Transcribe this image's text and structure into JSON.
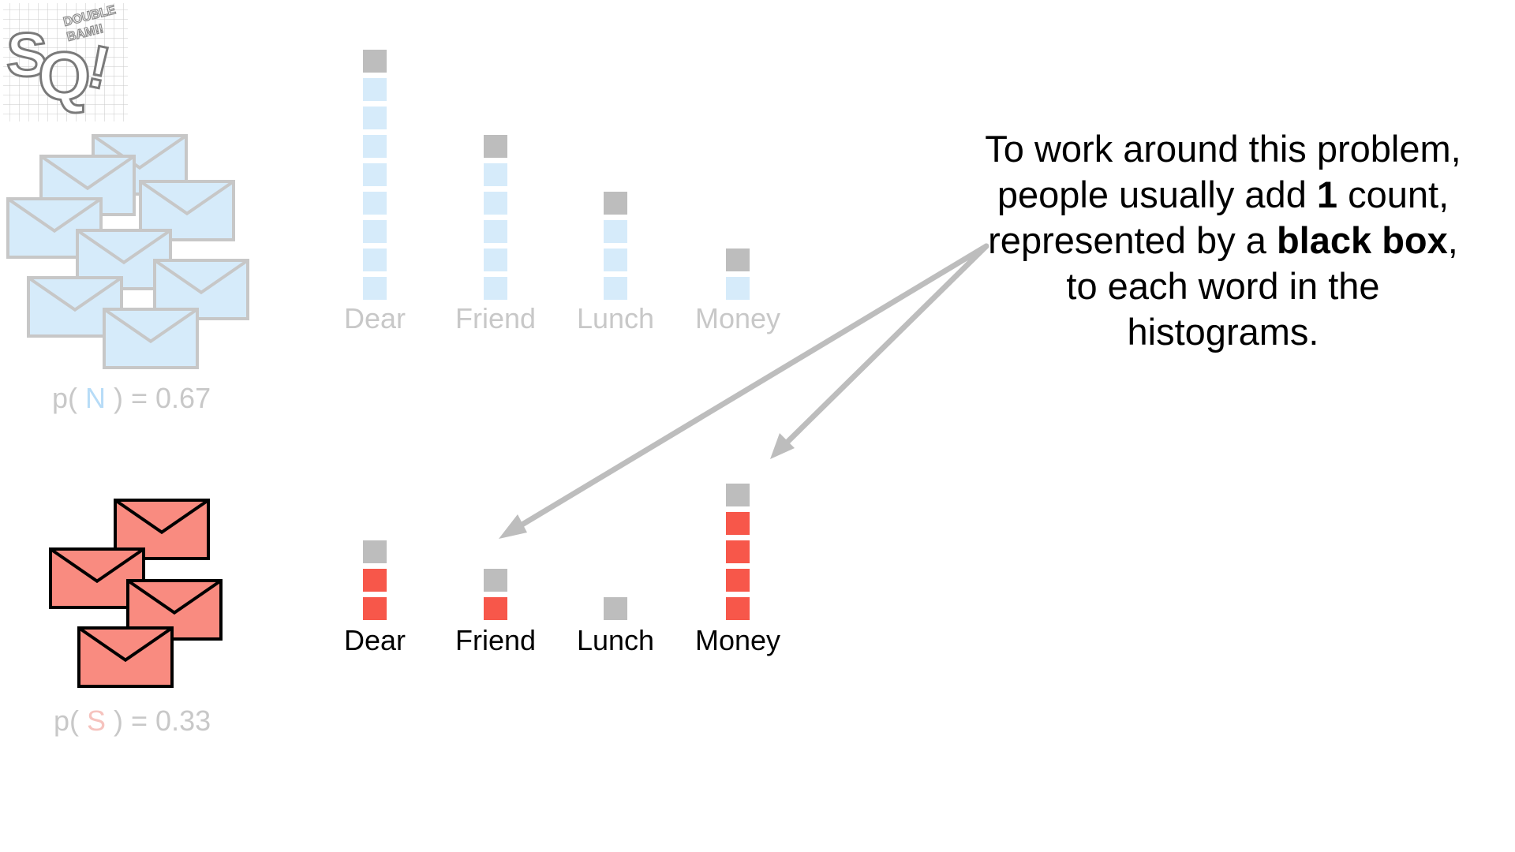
{
  "logo": {
    "main": "SQ!",
    "letters": [
      "S",
      "Q",
      "!"
    ],
    "tag": [
      "DOUBLE",
      "BAM!!"
    ]
  },
  "classes": [
    {
      "key": "normal",
      "prior_prefix": "p( ",
      "class_letter": "N",
      "prior_suffix": " ) = 0.67",
      "prior_value": 0.67,
      "envelope_count": 8,
      "faded": true,
      "colors": {
        "fill": "#d6ebfa",
        "stroke": "#c7c7c7",
        "box": "#d6ebfa"
      },
      "words": [
        {
          "label": "Dear",
          "count": 8
        },
        {
          "label": "Friend",
          "count": 5
        },
        {
          "label": "Lunch",
          "count": 3
        },
        {
          "label": "Money",
          "count": 1
        }
      ]
    },
    {
      "key": "spam",
      "prior_prefix": "p( ",
      "class_letter": "S",
      "prior_suffix": " ) = 0.33",
      "prior_value": 0.33,
      "envelope_count": 4,
      "faded": false,
      "colors": {
        "fill": "#f98b80",
        "stroke": "#000000",
        "box": "#f7574a"
      },
      "words": [
        {
          "label": "Dear",
          "count": 2
        },
        {
          "label": "Friend",
          "count": 1
        },
        {
          "label": "Lunch",
          "count": 0
        },
        {
          "label": "Money",
          "count": 4
        }
      ]
    }
  ],
  "pseudo_count": {
    "value": 1,
    "color": "#bdbdbd"
  },
  "explanation": {
    "segments": [
      {
        "text": "To work around this problem, people usually add ",
        "bold": false
      },
      {
        "text": "1",
        "bold": true
      },
      {
        "text": " count, represented by a ",
        "bold": false
      },
      {
        "text": "black box",
        "bold": true
      },
      {
        "text": ", to each word in the histograms.",
        "bold": false
      }
    ]
  },
  "arrows": {
    "color": "#bdbdbd",
    "targets": [
      "spam-friend-histogram",
      "spam-money-histogram"
    ]
  }
}
